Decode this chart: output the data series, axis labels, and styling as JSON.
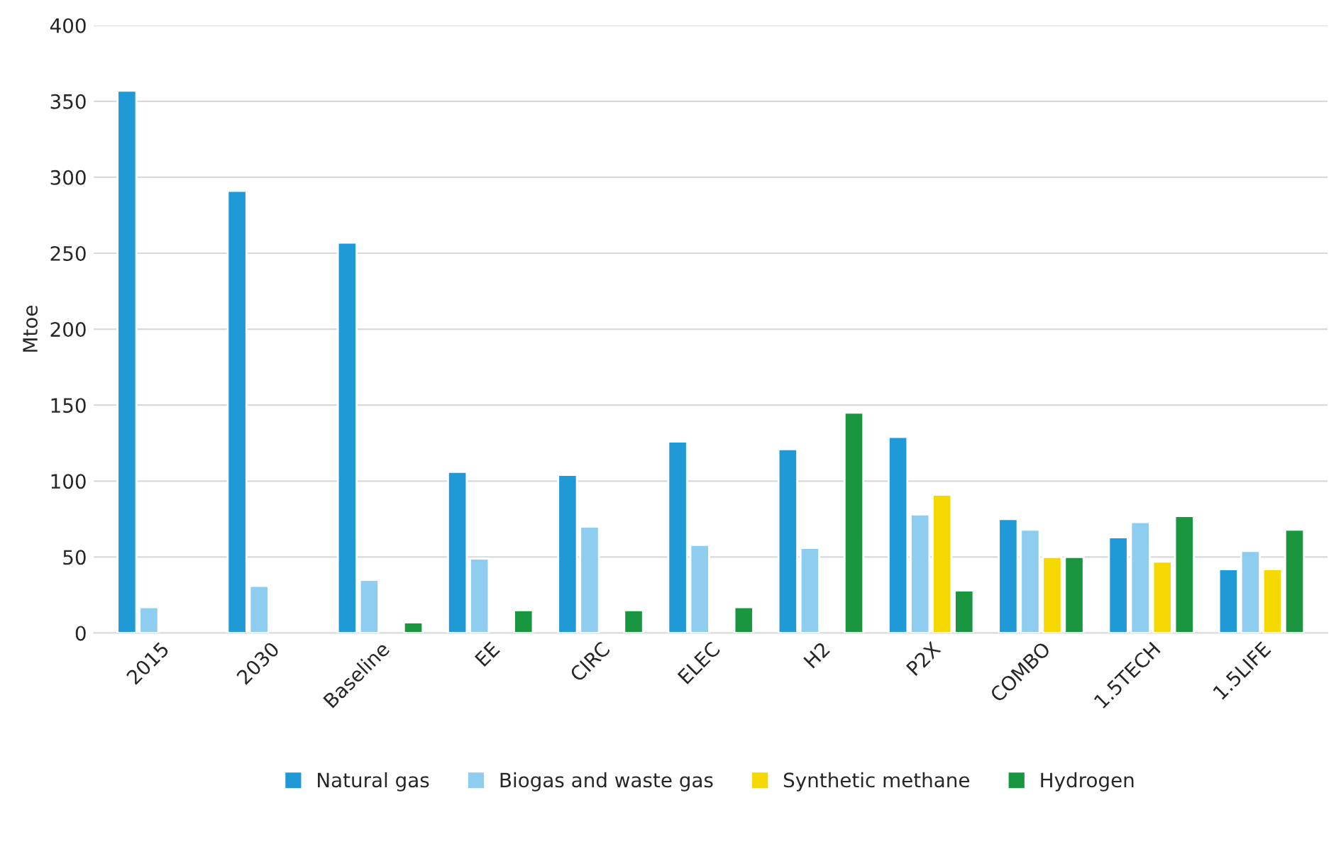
{
  "chart_data": {
    "type": "bar",
    "ylabel": "Mtoe",
    "categories": [
      "2015",
      "2030",
      "Baseline",
      "EE",
      "CIRC",
      "ELEC",
      "H2",
      "P2X",
      "COMBO",
      "1.5TECH",
      "1.5LIFE"
    ],
    "series": [
      {
        "name": "Natural gas",
        "color": "#1f9ad6",
        "values": [
          357,
          291,
          257,
          106,
          104,
          126,
          121,
          129,
          75,
          63,
          42
        ]
      },
      {
        "name": "Biogas and waste gas",
        "color": "#8fcdf0",
        "values": [
          17,
          31,
          35,
          49,
          70,
          58,
          56,
          78,
          68,
          73,
          54
        ]
      },
      {
        "name": "Synthetic methane",
        "color": "#f5d800",
        "values": [
          null,
          null,
          null,
          null,
          null,
          null,
          null,
          91,
          50,
          47,
          42
        ]
      },
      {
        "name": "Hydrogen",
        "color": "#1a9641",
        "values": [
          null,
          null,
          7,
          15,
          15,
          17,
          145,
          28,
          50,
          77,
          68
        ]
      }
    ],
    "ylim": [
      0,
      400
    ],
    "yticks": [
      0,
      50,
      100,
      150,
      200,
      250,
      300,
      350,
      400
    ],
    "grid": "y",
    "legend": "bottom"
  }
}
